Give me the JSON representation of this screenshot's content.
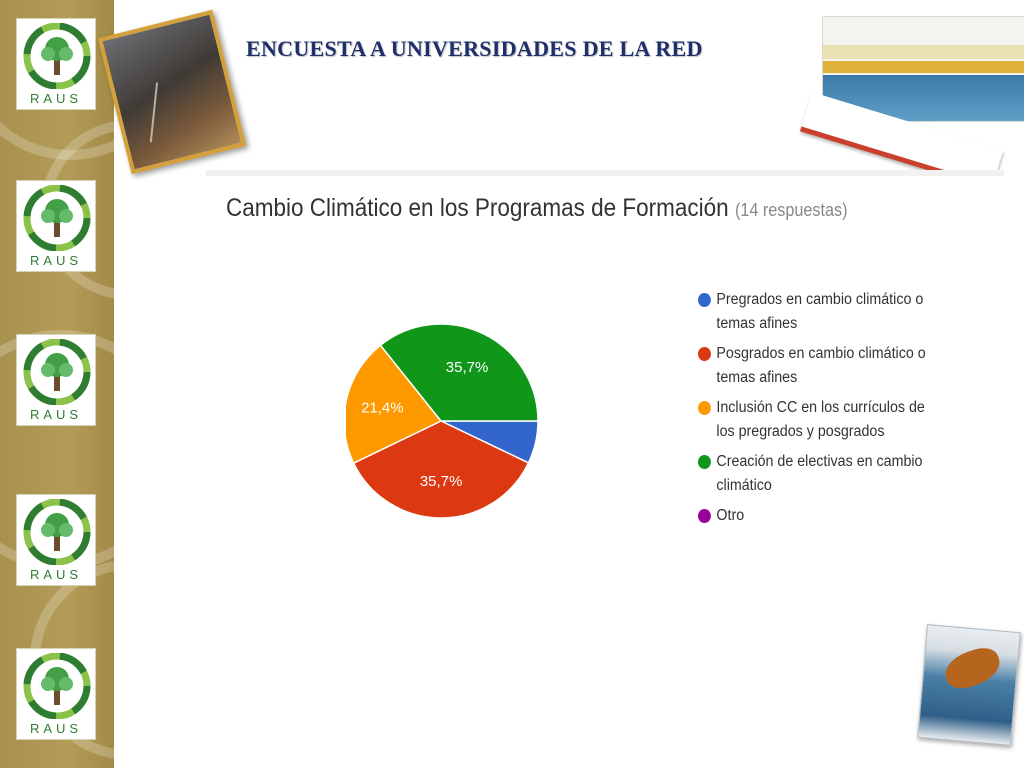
{
  "slide": {
    "title": "ENCUESTA A UNIVERSIDADES DE LA RED",
    "logo_text": "RAUS",
    "logo_count": 5
  },
  "colors": {
    "title": "#1f2f6b",
    "rail": "#a8914e",
    "blue": "#3366cc",
    "red": "#dc3912",
    "orange": "#ff9900",
    "green": "#109618",
    "purple": "#990099"
  },
  "chart_data": {
    "type": "pie",
    "title": "Cambio Climático en los Programas de Formación",
    "subtitle": "(14 respuestas)",
    "legend_position": "right",
    "slices": [
      {
        "label": "Pregrados en cambio climático o temas afines",
        "value": 7.1,
        "data_label": "",
        "color": "#3366cc"
      },
      {
        "label": "Posgrados en cambio climático o temas afines",
        "value": 35.7,
        "data_label": "35,7%",
        "color": "#dc3912"
      },
      {
        "label": "Inclusión CC en los currículos de los pregrados y posgrados",
        "value": 21.4,
        "data_label": "21,4%",
        "color": "#ff9900"
      },
      {
        "label": "Creación de electivas en cambio climático",
        "value": 35.7,
        "data_label": "35,7%",
        "color": "#109618"
      },
      {
        "label": "Otro",
        "value": 0,
        "data_label": "",
        "color": "#990099"
      }
    ]
  }
}
